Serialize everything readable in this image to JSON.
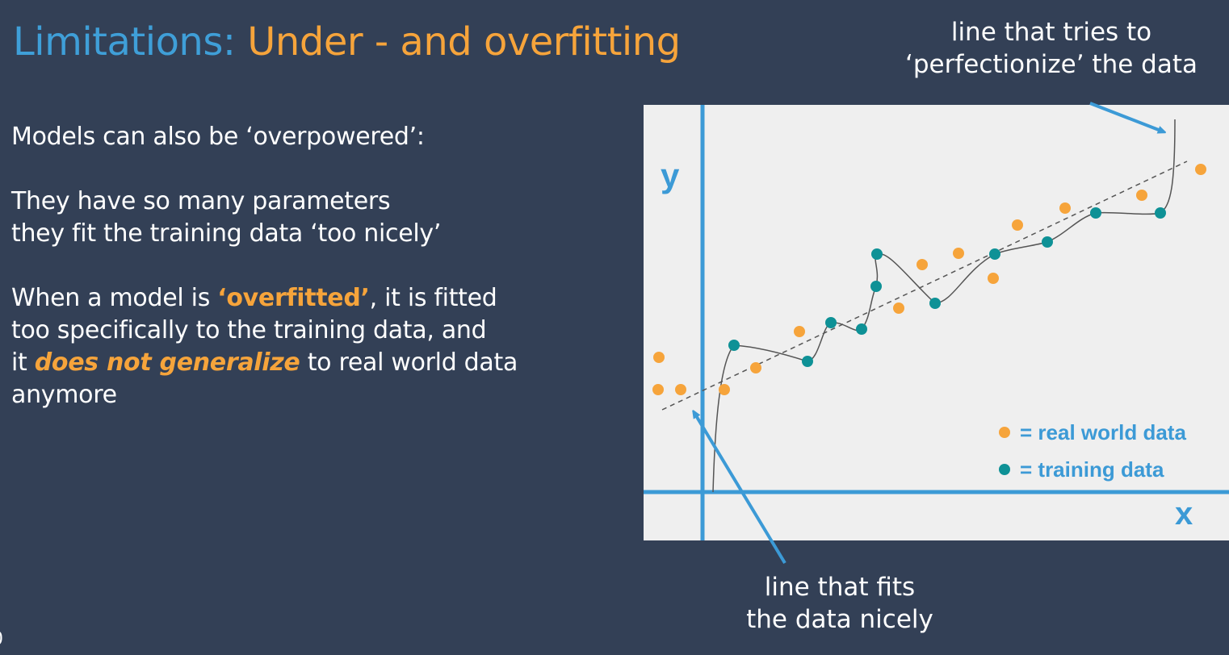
{
  "title": {
    "part1": "Limitations: ",
    "part2": "Under - and overfitting"
  },
  "body": {
    "line1": "Models can also be ‘overpowered’:",
    "line2": "They have so many parameters",
    "line3": "they fit the training data ‘too nicely’",
    "line4_pre": "When a model is ",
    "line4_hl": "‘overfitted’",
    "line4_post": ", it is fitted",
    "line5": "too specifically to the training data, and",
    "line6_pre": "it ",
    "line6_hl": "does not generalize",
    "line6_post": " to real world data",
    "line7": "anymore"
  },
  "callouts": {
    "top_line1": "line that tries to",
    "top_line2": "‘perfectionize’ the data",
    "bottom_line1": "line that fits",
    "bottom_line2": "the data nicely"
  },
  "page_number": "0",
  "diagram": {
    "axis_y_label": "y",
    "axis_x_label": "x",
    "legend": [
      {
        "label": "= real world data",
        "color": "#f6a43b"
      },
      {
        "label": "= training data",
        "color": "#0e9196"
      }
    ],
    "colors": {
      "background": "#efefef",
      "axis": "#3c9ad6",
      "real_world": "#f6a43b",
      "training": "#0e9196",
      "curve": "#555555",
      "arrow": "#3c9ad6"
    }
  }
}
